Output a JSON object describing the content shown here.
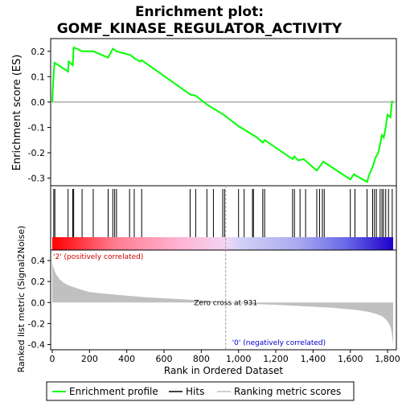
{
  "chart_data": {
    "type": "line",
    "title_line1": "Enrichment plot:",
    "title_line2": "GOMF_KINASE_REGULATOR_ACTIVITY",
    "ylabel_top": "Enrichment score (ES)",
    "ylabel_bottom": "Ranked list metric (Signal2Noise)",
    "xlabel": "Rank in Ordered Dataset",
    "xlim": [
      0,
      1830
    ],
    "es_ylim": [
      -0.33,
      0.25
    ],
    "metric_ylim": [
      -0.45,
      0.5
    ],
    "x_ticks": [
      0,
      200,
      400,
      600,
      800,
      1000,
      1200,
      1400,
      1600,
      1800
    ],
    "x_tick_labels": [
      "0",
      "200",
      "400",
      "600",
      "800",
      "1,000",
      "1,200",
      "1,400",
      "1,600",
      "1,800"
    ],
    "es_ticks": [
      0.2,
      0.1,
      0.0,
      -0.1,
      -0.2,
      -0.3
    ],
    "es_tick_labels": [
      "0.2",
      "0.1",
      "0.0",
      "-0.1",
      "-0.2",
      "-0.3"
    ],
    "metric_ticks": [
      0.4,
      0.2,
      0.0,
      -0.2,
      -0.4
    ],
    "metric_tick_labels": [
      "0.4",
      "0.2",
      "0.0",
      "-0.2",
      "-0.4"
    ],
    "positive_label": "'2' (positively correlated)",
    "negative_label": "'0' (negatively correlated)",
    "zero_cross_label": "Zero cross at 931",
    "zero_cross": 931,
    "series": [
      {
        "name": "Enrichment profile",
        "color": "#00ff00",
        "x": [
          0,
          5,
          12,
          85,
          88,
          110,
          115,
          160,
          220,
          300,
          325,
          345,
          420,
          445,
          470,
          480,
          740,
          770,
          830,
          920,
          1000,
          1100,
          1130,
          1140,
          1290,
          1300,
          1320,
          1350,
          1420,
          1440,
          1455,
          1600,
          1620,
          1630,
          1690,
          1700,
          1720,
          1735,
          1750,
          1762,
          1770,
          1780,
          1790,
          1800,
          1815,
          1825
        ],
        "y": [
          0.0,
          0.08,
          0.155,
          0.12,
          0.16,
          0.145,
          0.215,
          0.2,
          0.2,
          0.175,
          0.21,
          0.2,
          0.185,
          0.17,
          0.16,
          0.165,
          0.03,
          0.025,
          -0.01,
          -0.05,
          -0.095,
          -0.14,
          -0.16,
          -0.15,
          -0.225,
          -0.215,
          -0.23,
          -0.225,
          -0.27,
          -0.25,
          -0.235,
          -0.305,
          -0.285,
          -0.29,
          -0.315,
          -0.29,
          -0.255,
          -0.22,
          -0.2,
          -0.16,
          -0.13,
          -0.14,
          -0.1,
          -0.05,
          -0.06,
          0.005
        ]
      },
      {
        "name": "Hits",
        "color": "#000000",
        "positions": [
          8,
          14,
          85,
          110,
          115,
          160,
          220,
          300,
          325,
          335,
          345,
          415,
          440,
          480,
          740,
          770,
          830,
          865,
          915,
          925,
          1000,
          1030,
          1075,
          1080,
          1130,
          1140,
          1290,
          1300,
          1330,
          1360,
          1420,
          1435,
          1450,
          1460,
          1600,
          1625,
          1690,
          1720,
          1730,
          1740,
          1760,
          1770,
          1778,
          1790,
          1805,
          1825
        ]
      },
      {
        "name": "Ranking metric scores",
        "color": "#c0c0c0",
        "x": [
          0,
          5,
          20,
          40,
          60,
          80,
          100,
          150,
          200,
          300,
          400,
          500,
          600,
          700,
          800,
          900,
          931,
          1000,
          1100,
          1200,
          1300,
          1400,
          1500,
          1600,
          1650,
          1700,
          1740,
          1770,
          1790,
          1800,
          1810,
          1820,
          1828,
          1830
        ],
        "y": [
          0.38,
          0.34,
          0.27,
          0.22,
          0.19,
          0.17,
          0.155,
          0.125,
          0.1,
          0.08,
          0.065,
          0.05,
          0.04,
          0.03,
          0.02,
          0.008,
          0.0,
          -0.008,
          -0.015,
          -0.022,
          -0.03,
          -0.04,
          -0.05,
          -0.065,
          -0.075,
          -0.09,
          -0.11,
          -0.13,
          -0.16,
          -0.18,
          -0.21,
          -0.26,
          -0.36,
          -0.42
        ]
      }
    ],
    "legend": [
      {
        "label": "Enrichment profile",
        "color": "#00ff00"
      },
      {
        "label": "Hits",
        "color": "#000000"
      },
      {
        "label": "Ranking metric scores",
        "color": "#c0c0c0"
      }
    ]
  }
}
